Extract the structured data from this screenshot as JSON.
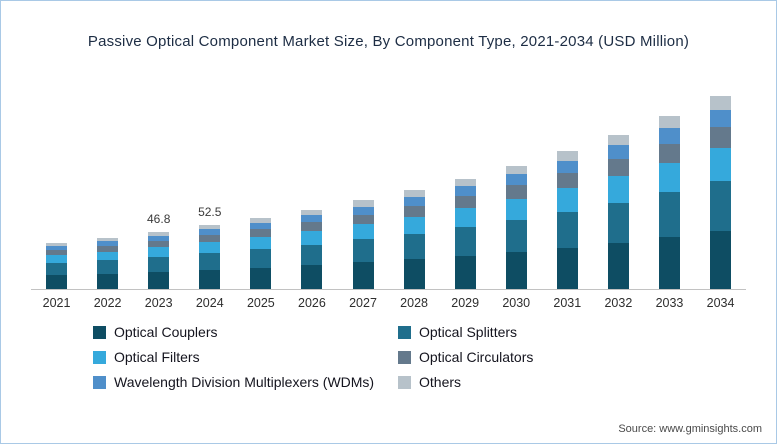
{
  "title": "Passive Optical Component Market Size, By Component Type, 2021-2034 (USD Million)",
  "source": "Source: www.gminsights.com",
  "chart_data": {
    "type": "bar",
    "stacked": true,
    "title": "Passive Optical Component Market Size, By Component Type, 2021-2034 (USD Million)",
    "xlabel": "",
    "ylabel": "USD Million",
    "ylim": [
      0,
      175
    ],
    "grid": false,
    "legend_position": "bottom",
    "categories": [
      "2021",
      "2022",
      "2023",
      "2024",
      "2025",
      "2026",
      "2027",
      "2028",
      "2029",
      "2030",
      "2031",
      "2032",
      "2033",
      "2034"
    ],
    "series": [
      {
        "name": "Optical Couplers",
        "color": "#0e4d63",
        "values": [
          11.4,
          12.6,
          14.0,
          15.8,
          17.6,
          19.5,
          21.8,
          24.3,
          27.2,
          30.3,
          33.9,
          38.0,
          42.5,
          47.4
        ]
      },
      {
        "name": "Optical Splitters",
        "color": "#1f6e8c",
        "values": [
          9.9,
          10.9,
          12.2,
          13.7,
          15.2,
          16.9,
          18.9,
          21.1,
          23.5,
          26.3,
          29.4,
          32.9,
          36.8,
          41.1
        ]
      },
      {
        "name": "Optical Filters",
        "color": "#35a9dc",
        "values": [
          6.5,
          7.1,
          8.0,
          8.9,
          9.9,
          11.1,
          12.3,
          13.8,
          15.4,
          17.2,
          19.2,
          21.5,
          24.1,
          26.9
        ]
      },
      {
        "name": "Optical Circulators",
        "color": "#64798c",
        "values": [
          4.2,
          4.6,
          5.1,
          5.8,
          6.4,
          7.2,
          8.0,
          8.9,
          10.0,
          11.1,
          12.4,
          13.9,
          15.6,
          17.4
        ]
      },
      {
        "name": "Wavelength Division Multiplexers (WDMs)",
        "color": "#4f8fca",
        "values": [
          3.4,
          3.8,
          4.2,
          4.7,
          5.3,
          5.9,
          6.5,
          7.3,
          8.1,
          9.1,
          10.2,
          11.4,
          12.7,
          14.2
        ]
      },
      {
        "name": "Others",
        "color": "#b7c2ca",
        "values": [
          2.7,
          2.9,
          3.3,
          3.7,
          4.1,
          4.6,
          5.1,
          5.7,
          6.3,
          7.1,
          7.9,
          8.9,
          9.9,
          11.1
        ]
      }
    ],
    "totals": [
      38.1,
      41.9,
      46.8,
      52.5,
      58.5,
      65.2,
      72.6,
      81.1,
      90.5,
      101.1,
      113.0,
      126.6,
      141.6,
      158.1
    ],
    "data_labels": {
      "2023": "46.8",
      "2024": "52.5"
    }
  }
}
